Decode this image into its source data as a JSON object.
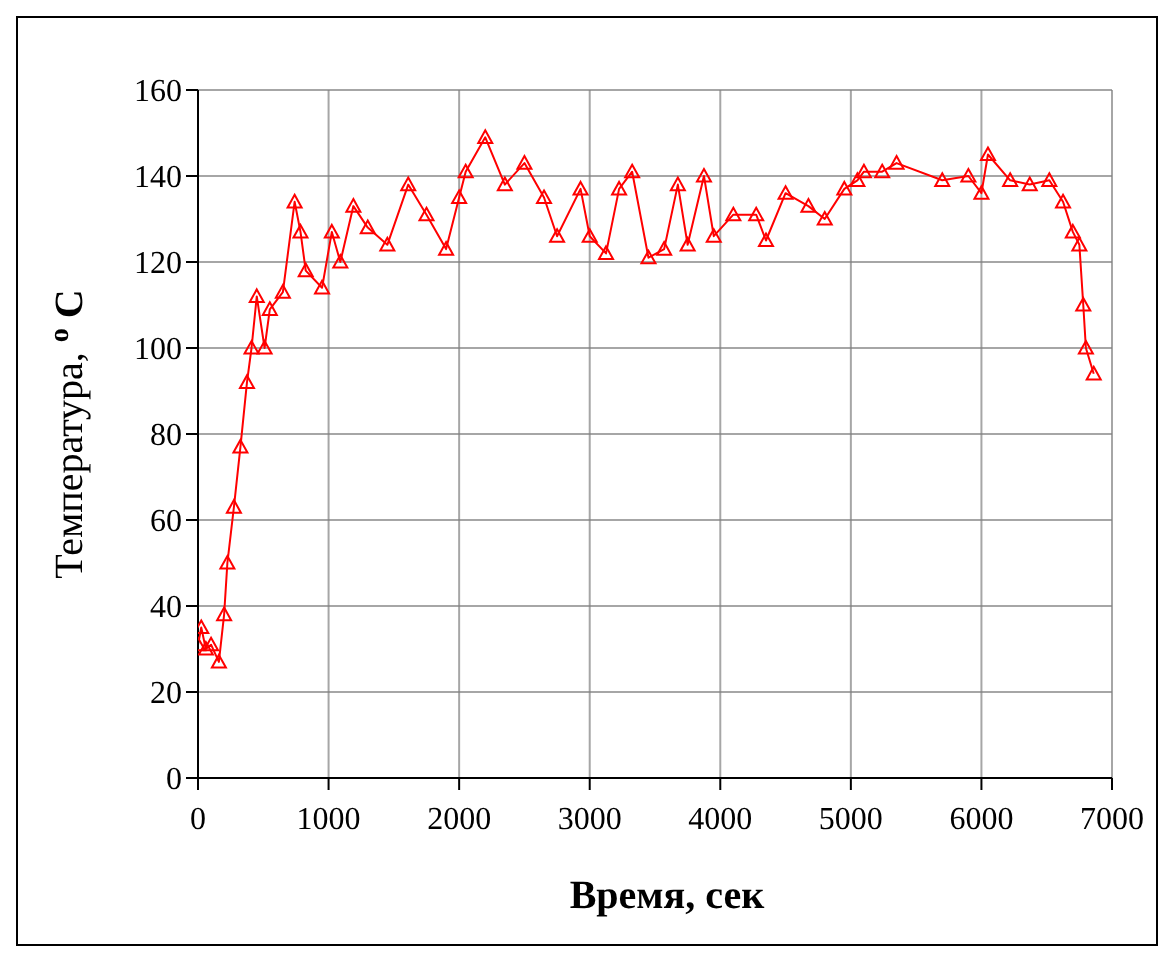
{
  "chart_data": {
    "type": "line",
    "xlabel": "Время, сек",
    "ylabel": "Температура, $^{o}$ C",
    "x": [
      0,
      25,
      60,
      100,
      160,
      200,
      225,
      275,
      325,
      375,
      410,
      450,
      510,
      550,
      650,
      740,
      785,
      825,
      950,
      1025,
      1090,
      1190,
      1300,
      1450,
      1610,
      1750,
      1900,
      2000,
      2050,
      2200,
      2350,
      2500,
      2650,
      2750,
      2930,
      3000,
      3125,
      3225,
      3325,
      3450,
      3570,
      3675,
      3750,
      3875,
      3950,
      4100,
      4275,
      4350,
      4500,
      4675,
      4800,
      4950,
      5050,
      5100,
      5240,
      5350,
      5700,
      5900,
      6000,
      6050,
      6220,
      6370,
      6520,
      6625,
      6700,
      6750,
      6780,
      6800,
      6860
    ],
    "series": [
      {
        "color": "#ff0000",
        "values": [
          31,
          35,
          30,
          31,
          27,
          38,
          50,
          63,
          77,
          92,
          100,
          112,
          100,
          109,
          113,
          134,
          127,
          118,
          114,
          127,
          120,
          133,
          128,
          124,
          138,
          131,
          123,
          135,
          141,
          149,
          138,
          143,
          135,
          126,
          137,
          126,
          122,
          137,
          141,
          121,
          123,
          138,
          124,
          140,
          126,
          131,
          131,
          125,
          136,
          133,
          130,
          137,
          139,
          141,
          141,
          143,
          139,
          140,
          136,
          145,
          139,
          138,
          139,
          134,
          127,
          124,
          110,
          100,
          94
        ]
      }
    ],
    "xlim": [
      0,
      7000
    ],
    "xticks": [
      0,
      1000,
      2000,
      3000,
      4000,
      5000,
      6000,
      7000
    ],
    "ylim": [
      0,
      160
    ],
    "yticks": [
      0,
      20,
      40,
      60,
      80,
      100,
      120,
      140,
      160
    ],
    "grid": true,
    "marker": "triangle",
    "line_style": "solid"
  }
}
